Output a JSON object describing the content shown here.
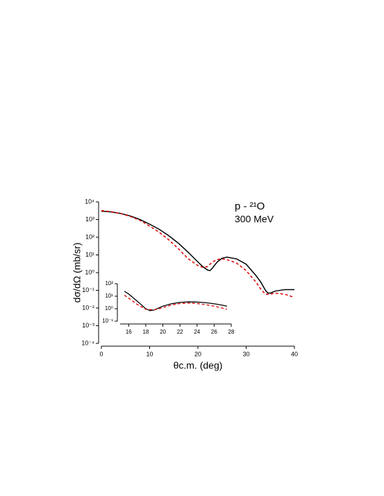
{
  "chart_data": [
    {
      "type": "line",
      "log_y": true,
      "xlabel": "θc.m. (deg)",
      "ylabel": "dσ/dΩ (mb/sr)",
      "annotations": [
        "p - ²¹O",
        "300 MeV"
      ],
      "xlim": [
        0,
        40
      ],
      "xticks": [
        0,
        10,
        20,
        30,
        40
      ],
      "ylim": [
        0.0001,
        10000
      ],
      "yticks": [
        {
          "value": 0.0001,
          "label": "10⁻⁴"
        },
        {
          "value": 0.001,
          "label": "10⁻³"
        },
        {
          "value": 0.01,
          "label": "10⁻²"
        },
        {
          "value": 0.1,
          "label": "10⁻¹"
        },
        {
          "value": 1,
          "label": "10⁰"
        },
        {
          "value": 10,
          "label": "10¹"
        },
        {
          "value": 100,
          "label": "10²"
        },
        {
          "value": 1000,
          "label": "10³"
        },
        {
          "value": 10000,
          "label": "10⁴"
        }
      ],
      "series": [
        {
          "color": "#000000",
          "dash": false,
          "x": [
            0,
            2,
            4,
            6,
            8,
            10,
            12,
            14,
            16,
            18,
            20,
            21,
            22,
            22.5,
            23,
            24,
            25,
            26,
            28,
            30,
            32,
            33,
            34,
            34.5,
            35,
            36,
            38,
            40
          ],
          "values": [
            3000,
            2700,
            2200,
            1600,
            1000,
            550,
            280,
            120,
            45,
            14,
            4,
            2.2,
            1.4,
            1.3,
            1.8,
            4,
            6.5,
            7.5,
            6,
            3,
            0.7,
            0.3,
            0.1,
            0.07,
            0.07,
            0.09,
            0.11,
            0.11
          ]
        },
        {
          "color": "#dd0000",
          "dash": true,
          "x": [
            0,
            2,
            4,
            6,
            8,
            10,
            12,
            14,
            16,
            18,
            20,
            21,
            22,
            23,
            24,
            25,
            26,
            28,
            30,
            32,
            33,
            34,
            35,
            36,
            38,
            40
          ],
          "values": [
            3200,
            2800,
            2200,
            1500,
            900,
            430,
            190,
            70,
            22,
            6,
            2.5,
            2,
            2.2,
            4,
            5.5,
            6,
            5.5,
            3.5,
            1.3,
            0.3,
            0.12,
            0.06,
            0.06,
            0.07,
            0.06,
            0.04
          ]
        }
      ]
    },
    {
      "type": "line",
      "log_y": true,
      "xlim": [
        15,
        28
      ],
      "xticks": [
        16,
        18,
        20,
        22,
        24,
        26,
        28
      ],
      "ylim": [
        0.1,
        100
      ],
      "yticks": [
        {
          "value": 0.1,
          "label": "10⁻¹"
        },
        {
          "value": 1,
          "label": "10⁰"
        },
        {
          "value": 10,
          "label": "10¹"
        },
        {
          "value": 100,
          "label": "10²"
        }
      ],
      "series": [
        {
          "color": "#000000",
          "dash": false,
          "x": [
            15.5,
            16,
            17,
            18,
            18.5,
            19,
            20,
            21,
            22,
            23,
            24,
            25,
            26,
            27,
            27.5
          ],
          "values": [
            25,
            15,
            4,
            1,
            0.7,
            0.8,
            1.6,
            2.5,
            3.2,
            3.5,
            3.4,
            3,
            2.5,
            1.9,
            1.6
          ]
        },
        {
          "color": "#dd0000",
          "dash": true,
          "x": [
            15.5,
            16,
            17,
            18,
            19,
            20,
            21,
            22,
            23,
            24,
            25,
            26,
            27,
            27.5
          ],
          "values": [
            12,
            7,
            2.2,
            0.9,
            0.8,
            1.2,
            2,
            2.6,
            2.8,
            2.6,
            2.1,
            1.6,
            1.1,
            0.9
          ]
        }
      ]
    }
  ]
}
